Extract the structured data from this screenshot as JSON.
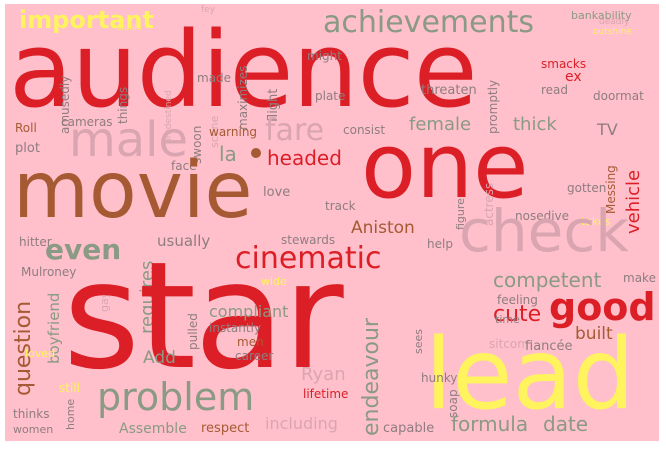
{
  "colors": {
    "background": "#ffc0cb",
    "red": "#dc1f26",
    "gray_green": "#8a9a84",
    "brown": "#a55a33",
    "yellow": "#fff35e",
    "light_pink": "#d9a5b0",
    "dark_gray": "#8e7d7f"
  },
  "words": {
    "audience": "audience",
    "one": "one",
    "star": "star",
    "movie": "movie",
    "lead": "lead",
    "check": "check",
    "male": "male",
    "fare": "fare",
    "achievements": "achievements",
    "important": "important",
    "cinematic": "cinematic",
    "problem": "problem",
    "good": "good",
    "even": "even",
    "question": "question",
    "endeavour": "endeavour",
    "formula": "formula",
    "date": "date",
    "competent": "competent",
    "cute": "cute",
    "built": "built",
    "Aniston": "Aniston",
    "female": "female",
    "thick": "thick",
    "TV": "TV",
    "headed": "headed",
    "la": "la",
    "Ryan": "Ryan",
    "requires": "requires",
    "compliant": "compliant",
    "usually": "usually",
    "Add": "Add",
    "boyfriend": "boyfriend",
    "bankability": "bankability",
    "smacks": "smacks",
    "ex": "ex",
    "read": "read",
    "doormat": "doormat",
    "threaten": "threaten",
    "made": "made",
    "things": "things",
    "amusedly": "amusedly",
    "might": "might",
    "maximizes": "maximizes",
    "flight": "flight",
    "plate": "plate",
    "cameras": "cameras",
    "warning": "warning",
    "consist": "consist",
    "promptly": "promptly",
    "Roll": "Roll",
    "plot": "plot",
    "face": "face",
    "swoon": "swoon",
    "scene": "scene",
    "love": "love",
    "track": "track",
    "gotten": "gotten",
    "Messing": "Messing",
    "vehicle": "vehicle",
    "actress": "actress",
    "figure": "figure",
    "nosedive": "nosedive",
    "takes": "takes",
    "help": "help",
    "hitter": "hitter",
    "stewards": "stewards",
    "wide": "wide",
    "Mulroney": "Mulroney",
    "make": "make",
    "feeling": "feeling",
    "gay": "gay",
    "pulled": "pulled",
    "instantly": "instantly",
    "men": "men",
    "career": "career",
    "sees": "sees",
    "time": "time",
    "sitcom": "sitcom",
    "fiancée": "fiancée",
    "hunky": "hunky",
    "soap": "soap",
    "lifetime": "lifetime",
    "including": "including",
    "respect": "respect",
    "Assemble": "Assemble",
    "capable": "capable",
    "thinks": "thinks",
    "women": "women",
    "home": "home",
    "still": "still",
    "loved": "loved",
    "fey": "fey",
    "deadly": "deadly",
    "outshine": "outshine",
    "predestined": "predestined",
    "studio": "studio"
  }
}
